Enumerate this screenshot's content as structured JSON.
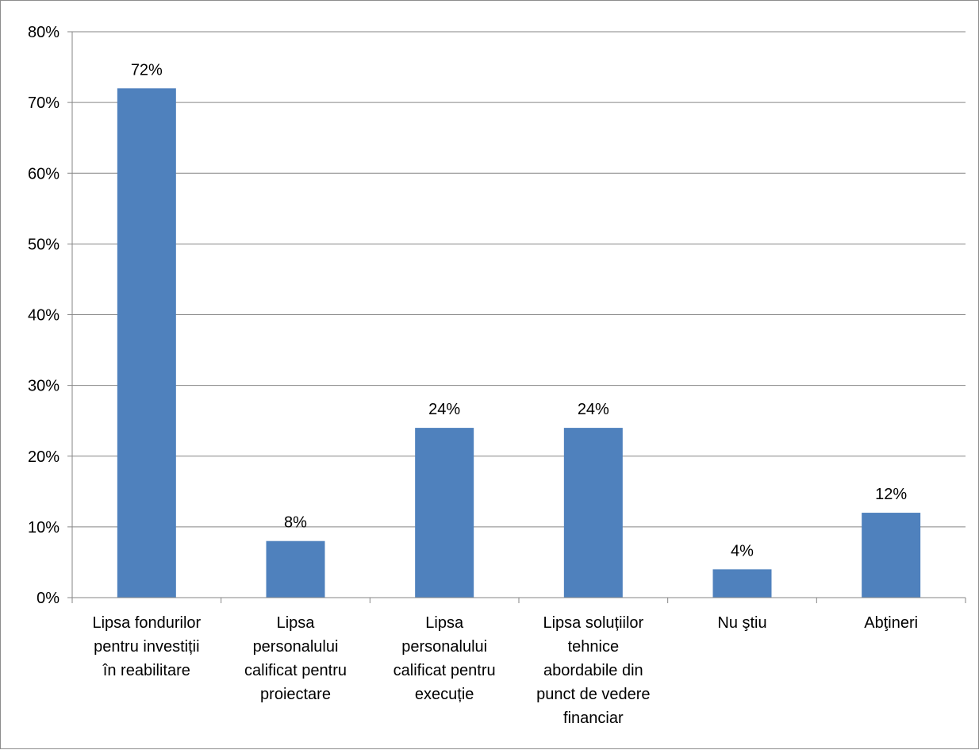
{
  "chart_data": {
    "type": "bar",
    "categories": [
      [
        "Lipsa fondurilor",
        "pentru investiții",
        "în reabilitare"
      ],
      [
        "Lipsa",
        "personalului",
        "calificat pentru",
        "proiectare"
      ],
      [
        "Lipsa",
        "personalului",
        "calificat pentru",
        "execuție"
      ],
      [
        "Lipsa soluțiilor",
        "tehnice",
        "abordabile din",
        "punct de vedere",
        "financiar"
      ],
      [
        "Nu ştiu"
      ],
      [
        "Abţineri"
      ]
    ],
    "values": [
      72,
      8,
      24,
      24,
      4,
      12
    ],
    "data_labels": [
      "72%",
      "8%",
      "24%",
      "24%",
      "4%",
      "12%"
    ],
    "y_ticks": [
      "0%",
      "10%",
      "20%",
      "30%",
      "40%",
      "50%",
      "60%",
      "70%",
      "80%"
    ],
    "ylim": [
      0,
      80
    ],
    "grid": true,
    "legend": "none",
    "bar_color": "#4f81bd",
    "grid_color": "#868686"
  }
}
